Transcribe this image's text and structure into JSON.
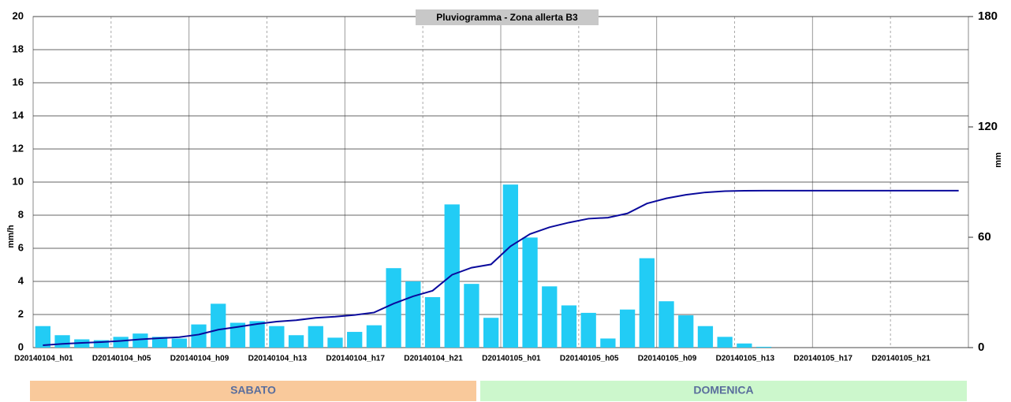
{
  "chart_data": {
    "type": "bar",
    "title": "Pluviogramma - Zona allerta B3",
    "y_label": "mm/h",
    "y2_label": "mm",
    "categories": [
      "D20140104_h01",
      null,
      null,
      null,
      "D20140104_h05",
      null,
      null,
      null,
      "D20140104_h09",
      null,
      null,
      null,
      "D20140104_h13",
      null,
      null,
      null,
      "D20140104_h17",
      null,
      null,
      null,
      "D20140104_h21",
      null,
      null,
      null,
      "D20140105_h01",
      null,
      null,
      null,
      "D20140105_h05",
      null,
      null,
      null,
      "D20140105_h09",
      null,
      null,
      null,
      "D20140105_h13",
      null,
      null,
      null,
      "D20140105_h17",
      null,
      null,
      null,
      "D20140105_h21",
      null,
      null,
      null
    ],
    "series": [
      {
        "type": "bar",
        "color": "#22ccf5",
        "values": [
          1.3,
          0.75,
          0.5,
          0.45,
          0.65,
          0.85,
          0.65,
          0.55,
          1.4,
          2.65,
          1.5,
          1.6,
          1.3,
          0.75,
          1.3,
          0.6,
          0.95,
          1.35,
          4.8,
          4.0,
          3.05,
          8.65,
          3.85,
          1.8,
          9.85,
          6.65,
          3.7,
          2.55,
          2.1,
          0.55,
          2.3,
          5.4,
          2.8,
          1.95,
          1.3,
          0.65,
          0.25,
          0.05,
          0,
          0,
          0,
          0,
          0,
          0,
          0,
          0,
          0,
          0
        ]
      },
      {
        "type": "line",
        "axis": "y2",
        "color": "#0a0a9c",
        "values": [
          1.3,
          2.05,
          2.55,
          3.0,
          3.65,
          4.5,
          5.15,
          5.7,
          7.1,
          9.75,
          11.25,
          12.85,
          14.15,
          14.9,
          16.2,
          16.8,
          17.75,
          19.1,
          23.9,
          27.9,
          30.95,
          39.6,
          43.45,
          45.25,
          55.1,
          61.75,
          65.45,
          68.0,
          70.1,
          70.65,
          72.95,
          78.35,
          81.15,
          83.1,
          84.4,
          85.05,
          85.3,
          85.35,
          85.35,
          85.35,
          85.35,
          85.35,
          85.35,
          85.35,
          85.35,
          85.35,
          85.35,
          85.35
        ]
      }
    ],
    "ylim": [
      0,
      20
    ],
    "yticks": [
      0,
      2,
      4,
      6,
      8,
      10,
      12,
      14,
      16,
      18,
      20
    ],
    "y2lim": [
      0,
      180
    ],
    "y2ticks": [
      0,
      60,
      120,
      180
    ],
    "grid": true,
    "bands": [
      {
        "label": "SABATO",
        "color": "#f9c99b"
      },
      {
        "label": "DOMENICA",
        "color": "#ccf7cc"
      }
    ]
  }
}
